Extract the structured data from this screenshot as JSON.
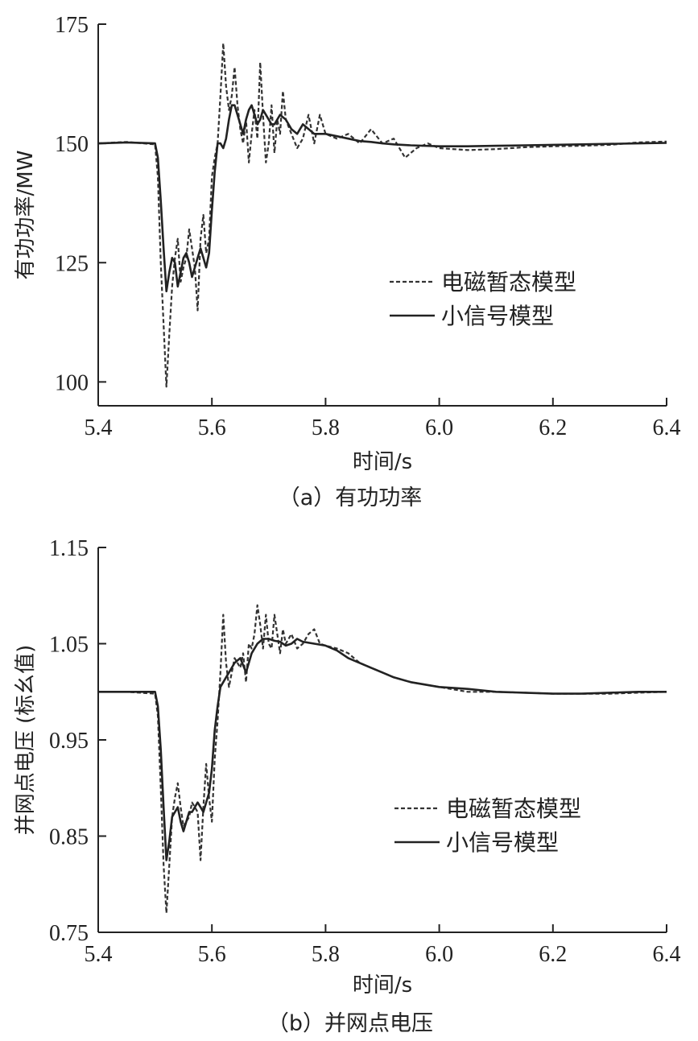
{
  "chart_data": [
    {
      "type": "line",
      "caption": "（a）有功功率",
      "xlabel": "时间/s",
      "ylabel": "有功功率/MW",
      "xlim": [
        5.4,
        6.4
      ],
      "ylim": [
        95,
        175
      ],
      "xticks": [
        5.4,
        5.6,
        5.8,
        6.0,
        6.2,
        6.4
      ],
      "xtick_labels": [
        "5.4",
        "5.6",
        "5.8",
        "6.0",
        "6.2",
        "6.4"
      ],
      "yticks": [
        100,
        125,
        150,
        175
      ],
      "ytick_labels": [
        "100",
        "125",
        "150",
        "175"
      ],
      "legend_position": "center-right",
      "series": [
        {
          "name": "电磁暂态模型",
          "style": "dashed",
          "color": "#333333",
          "x": [
            5.4,
            5.45,
            5.5,
            5.505,
            5.51,
            5.515,
            5.52,
            5.525,
            5.53,
            5.535,
            5.54,
            5.545,
            5.55,
            5.555,
            5.56,
            5.565,
            5.57,
            5.575,
            5.58,
            5.585,
            5.59,
            5.595,
            5.6,
            5.605,
            5.61,
            5.615,
            5.62,
            5.625,
            5.63,
            5.635,
            5.64,
            5.645,
            5.65,
            5.655,
            5.66,
            5.665,
            5.67,
            5.675,
            5.68,
            5.685,
            5.69,
            5.695,
            5.7,
            5.705,
            5.71,
            5.715,
            5.72,
            5.725,
            5.73,
            5.74,
            5.75,
            5.76,
            5.77,
            5.78,
            5.79,
            5.8,
            5.82,
            5.84,
            5.86,
            5.88,
            5.9,
            5.92,
            5.94,
            5.96,
            5.98,
            6.0,
            6.05,
            6.1,
            6.15,
            6.2,
            6.25,
            6.3,
            6.35,
            6.4
          ],
          "values": [
            150,
            150.3,
            149.8,
            143,
            125,
            112,
            99,
            110,
            120,
            126,
            130,
            121,
            124,
            126,
            132,
            128,
            124,
            115,
            130,
            135,
            127,
            130,
            143,
            147,
            150,
            160,
            171,
            162,
            157,
            160,
            166,
            158,
            153,
            150,
            155,
            146,
            152,
            157,
            151,
            167,
            156,
            146,
            150,
            158,
            148,
            155,
            152,
            161,
            155,
            152,
            149,
            151,
            156,
            150,
            156,
            152,
            151,
            152,
            150,
            153,
            150,
            151,
            147,
            149,
            150,
            149,
            148.6,
            148.8,
            149.2,
            149.4,
            149.5,
            149.7,
            150.2,
            150.4
          ]
        },
        {
          "name": "小信号模型",
          "style": "solid",
          "color": "#222222",
          "x": [
            5.4,
            5.45,
            5.5,
            5.505,
            5.51,
            5.515,
            5.52,
            5.525,
            5.53,
            5.535,
            5.54,
            5.545,
            5.55,
            5.555,
            5.56,
            5.565,
            5.57,
            5.575,
            5.58,
            5.585,
            5.59,
            5.595,
            5.6,
            5.605,
            5.61,
            5.615,
            5.62,
            5.625,
            5.63,
            5.635,
            5.64,
            5.645,
            5.65,
            5.655,
            5.66,
            5.665,
            5.67,
            5.675,
            5.68,
            5.685,
            5.69,
            5.695,
            5.7,
            5.705,
            5.71,
            5.72,
            5.73,
            5.74,
            5.75,
            5.76,
            5.78,
            5.8,
            5.82,
            5.84,
            5.86,
            5.88,
            5.9,
            5.92,
            5.95,
            6.0,
            6.05,
            6.1,
            6.15,
            6.2,
            6.25,
            6.3,
            6.35,
            6.4
          ],
          "values": [
            150,
            150.2,
            150,
            147,
            138,
            128,
            119,
            123,
            126,
            125,
            120,
            123,
            126,
            127,
            125,
            122,
            124,
            126,
            128,
            126,
            124,
            127,
            136,
            144,
            150,
            150,
            149,
            151,
            155,
            158,
            158,
            156,
            154,
            152,
            155,
            157,
            158,
            156,
            154,
            155,
            157,
            156,
            155,
            154,
            154,
            156,
            155,
            153,
            152,
            154,
            152,
            152,
            151.5,
            151,
            150.5,
            150.3,
            150,
            149.8,
            149.6,
            149.4,
            149.4,
            149.5,
            149.6,
            149.7,
            149.8,
            149.9,
            150,
            150.1
          ]
        }
      ]
    },
    {
      "type": "line",
      "caption": "（b）并网点电压",
      "xlabel": "时间/s",
      "ylabel": "并网点电压 (标幺值)",
      "xlim": [
        5.4,
        6.4
      ],
      "ylim": [
        0.75,
        1.15
      ],
      "xticks": [
        5.4,
        5.6,
        5.8,
        6.0,
        6.2,
        6.4
      ],
      "xtick_labels": [
        "5.4",
        "5.6",
        "5.8",
        "6.0",
        "6.2",
        "6.4"
      ],
      "yticks": [
        0.75,
        0.85,
        0.95,
        1.05,
        1.15
      ],
      "ytick_labels": [
        "0.75",
        "0.85",
        "0.95",
        "1.05",
        "1.15"
      ],
      "legend_position": "center-right",
      "series": [
        {
          "name": "电磁暂态模型",
          "style": "dashed",
          "color": "#333333",
          "x": [
            5.4,
            5.45,
            5.5,
            5.505,
            5.51,
            5.515,
            5.52,
            5.525,
            5.53,
            5.535,
            5.54,
            5.545,
            5.55,
            5.555,
            5.56,
            5.565,
            5.57,
            5.575,
            5.58,
            5.585,
            5.59,
            5.595,
            5.6,
            5.605,
            5.61,
            5.615,
            5.62,
            5.625,
            5.63,
            5.635,
            5.64,
            5.645,
            5.65,
            5.655,
            5.66,
            5.665,
            5.67,
            5.675,
            5.68,
            5.685,
            5.69,
            5.695,
            5.7,
            5.705,
            5.71,
            5.715,
            5.72,
            5.725,
            5.73,
            5.74,
            5.75,
            5.76,
            5.77,
            5.78,
            5.79,
            5.8,
            5.82,
            5.84,
            5.86,
            5.88,
            5.9,
            5.92,
            5.95,
            6.0,
            6.05,
            6.1,
            6.15,
            6.2,
            6.25,
            6.3,
            6.35,
            6.4
          ],
          "values": [
            1.0,
            1.0,
            0.998,
            0.975,
            0.9,
            0.82,
            0.77,
            0.82,
            0.87,
            0.89,
            0.905,
            0.88,
            0.86,
            0.865,
            0.87,
            0.885,
            0.88,
            0.875,
            0.825,
            0.88,
            0.925,
            0.89,
            0.865,
            0.93,
            0.97,
            1.02,
            1.08,
            1.03,
            1.005,
            1.02,
            1.035,
            1.03,
            1.025,
            1.04,
            1.01,
            1.05,
            1.045,
            1.06,
            1.09,
            1.07,
            1.045,
            1.08,
            1.05,
            1.045,
            1.08,
            1.06,
            1.04,
            1.065,
            1.05,
            1.06,
            1.045,
            1.05,
            1.06,
            1.065,
            1.05,
            1.048,
            1.045,
            1.04,
            1.03,
            1.025,
            1.02,
            1.015,
            1.01,
            1.005,
            1.0,
            1.0,
            0.999,
            0.998,
            0.998,
            0.998,
            0.999,
            1.0
          ]
        },
        {
          "name": "小信号模型",
          "style": "solid",
          "color": "#222222",
          "x": [
            5.4,
            5.45,
            5.5,
            5.505,
            5.51,
            5.515,
            5.52,
            5.525,
            5.53,
            5.535,
            5.54,
            5.545,
            5.55,
            5.555,
            5.56,
            5.565,
            5.57,
            5.575,
            5.58,
            5.585,
            5.59,
            5.595,
            5.6,
            5.605,
            5.61,
            5.615,
            5.62,
            5.625,
            5.63,
            5.64,
            5.65,
            5.66,
            5.67,
            5.68,
            5.69,
            5.7,
            5.71,
            5.72,
            5.73,
            5.74,
            5.75,
            5.76,
            5.78,
            5.8,
            5.82,
            5.84,
            5.86,
            5.88,
            5.9,
            5.92,
            5.95,
            6.0,
            6.05,
            6.1,
            6.15,
            6.2,
            6.25,
            6.3,
            6.35,
            6.4
          ],
          "values": [
            1.0,
            1.0,
            1.0,
            0.985,
            0.94,
            0.88,
            0.825,
            0.845,
            0.87,
            0.875,
            0.88,
            0.865,
            0.855,
            0.865,
            0.875,
            0.875,
            0.88,
            0.885,
            0.88,
            0.875,
            0.885,
            0.895,
            0.92,
            0.96,
            0.985,
            1.005,
            1.01,
            1.015,
            1.02,
            1.03,
            1.035,
            1.02,
            1.04,
            1.05,
            1.055,
            1.055,
            1.053,
            1.052,
            1.048,
            1.05,
            1.055,
            1.052,
            1.05,
            1.048,
            1.043,
            1.035,
            1.03,
            1.025,
            1.02,
            1.015,
            1.01,
            1.005,
            1.003,
            1.0,
            0.999,
            0.998,
            0.998,
            0.999,
            1.0,
            1.0
          ]
        }
      ]
    }
  ]
}
